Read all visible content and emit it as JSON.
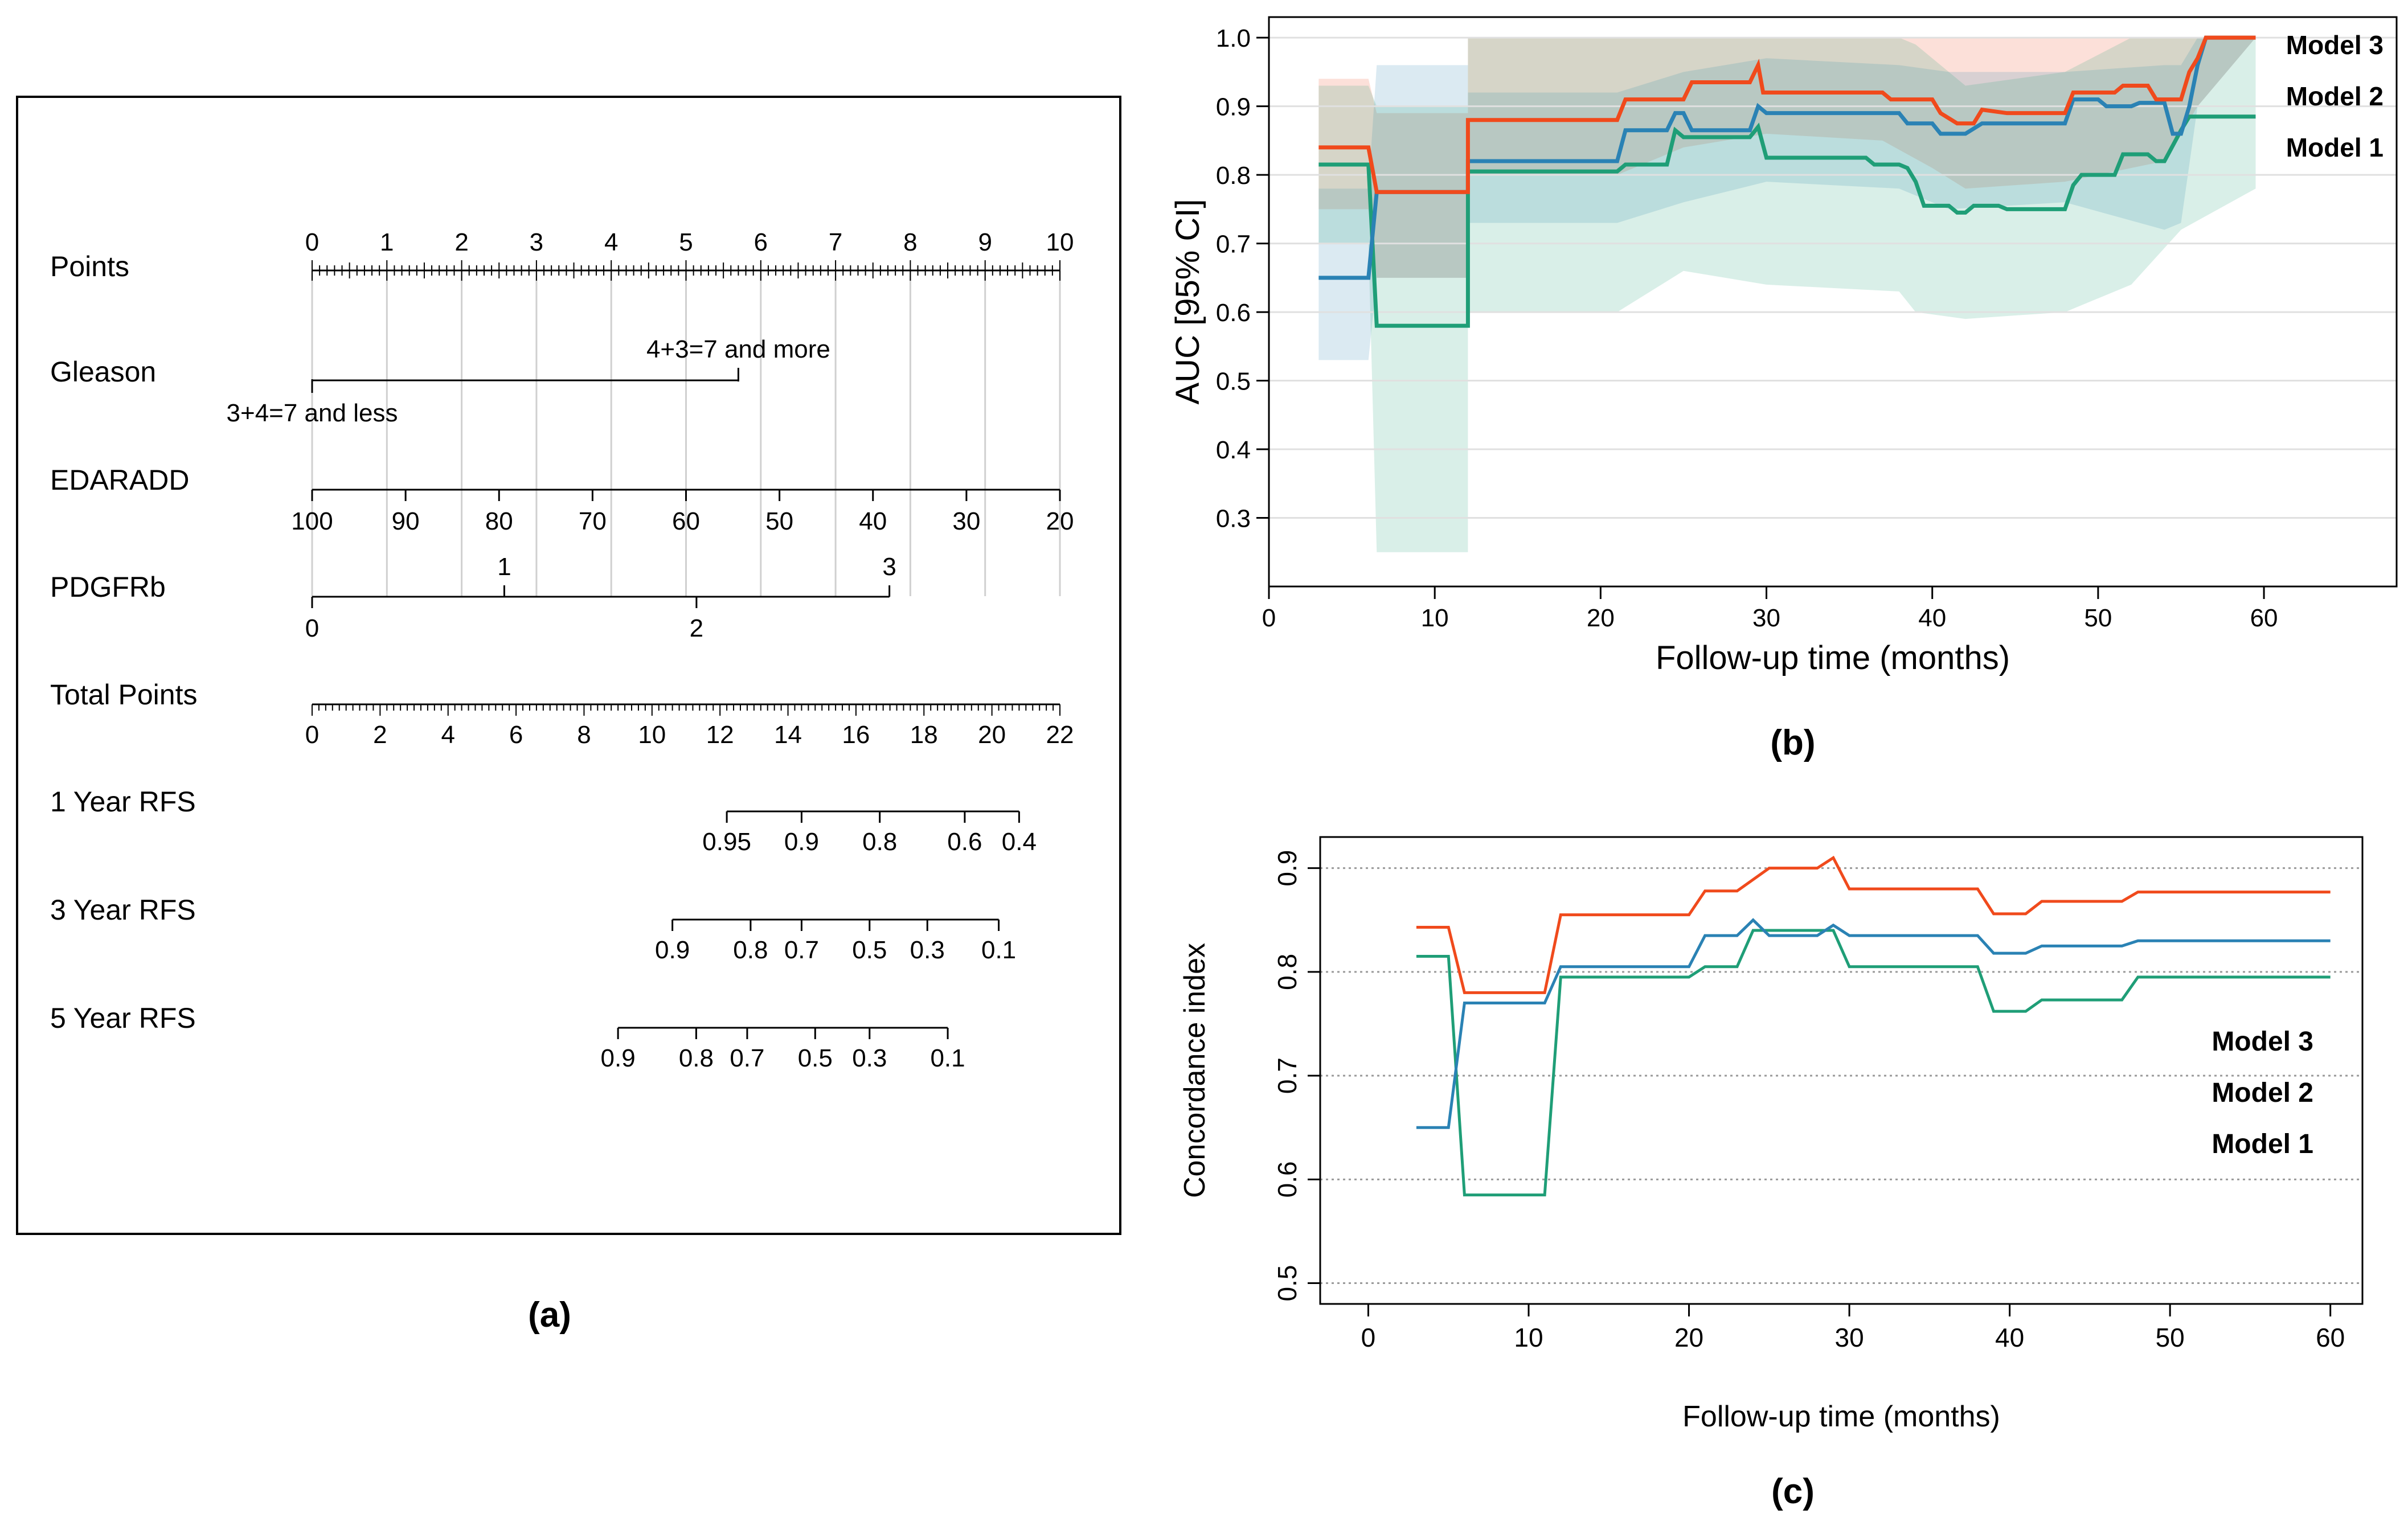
{
  "panel_labels": {
    "a": "(a)",
    "b": "(b)",
    "c": "(c)"
  },
  "colors": {
    "model3": "#f04a1c",
    "model2": "#2a82b4",
    "model1": "#1f9e77",
    "axis": "#000000",
    "grid": "#d9d9d9"
  },
  "chart_data": [
    {
      "type": "nomogram",
      "panel": "(a)",
      "rows": [
        {
          "name": "Points",
          "label": "Points",
          "scale": {
            "min": 0,
            "max": 10,
            "major": [
              0,
              1,
              2,
              3,
              4,
              5,
              6,
              7,
              8,
              9,
              10
            ],
            "minor_step": 0.1
          }
        },
        {
          "name": "Gleason",
          "label": "Gleason",
          "categories": [
            "3+4=7 and less",
            "4+3=7 and more"
          ],
          "points": [
            0,
            5.7
          ]
        },
        {
          "name": "EDARADD",
          "label": "EDARADD",
          "ticks": [
            100,
            90,
            80,
            70,
            60,
            50,
            40,
            30,
            20
          ],
          "points_at_100": 0,
          "points_at_20": 10
        },
        {
          "name": "PDGFRb",
          "label": "PDGFRb",
          "ticks_above": [
            "1",
            "3"
          ],
          "ticks_below": [
            "0",
            "2"
          ],
          "points": {
            "0": 0,
            "1": 2.57,
            "2": 5.14,
            "3": 7.72
          }
        },
        {
          "name": "Total Points",
          "label": "Total Points",
          "scale": {
            "min": 0,
            "max": 22,
            "major": [
              0,
              2,
              4,
              6,
              8,
              10,
              12,
              14,
              16,
              18,
              20,
              22
            ]
          }
        },
        {
          "name": "1 Year RFS",
          "label": "1 Year RFS",
          "ticks": [
            "0.95",
            "0.9",
            "0.8",
            "0.6",
            "0.4"
          ],
          "total_points": [
            12.2,
            14.4,
            16.7,
            19.2,
            20.8
          ]
        },
        {
          "name": "3 Year RFS",
          "label": "3 Year RFS",
          "ticks": [
            "0.9",
            "0.8",
            "0.7",
            "0.5",
            "0.3",
            "0.1"
          ],
          "total_points": [
            10.6,
            12.9,
            14.4,
            16.4,
            18.1,
            20.2
          ]
        },
        {
          "name": "5 Year RFS",
          "label": "5 Year RFS",
          "ticks": [
            "0.9",
            "0.8",
            "0.7",
            "0.5",
            "0.3",
            "0.1"
          ],
          "total_points": [
            9.0,
            11.3,
            12.8,
            14.8,
            16.4,
            18.7
          ]
        }
      ]
    },
    {
      "type": "line",
      "panel": "(b)",
      "xlabel": "Follow-up time (months)",
      "ylabel": "AUC [95% CI]",
      "xlim": [
        0,
        68
      ],
      "ylim": [
        0.2,
        1.03
      ],
      "xticks": [
        0,
        10,
        20,
        30,
        40,
        50,
        60
      ],
      "yticks": [
        "0.3",
        "0.4",
        "0.5",
        "0.6",
        "0.7",
        "0.8",
        "0.9",
        "1.0"
      ],
      "grid": "horizontal",
      "legend": "top-right",
      "series": [
        {
          "name": "Model 3",
          "color": "#f04a1c",
          "points": [
            [
              3,
              0.84
            ],
            [
              6,
              0.84
            ],
            [
              6.5,
              0.775
            ],
            [
              12,
              0.775
            ],
            [
              12,
              0.88
            ],
            [
              21,
              0.88
            ],
            [
              21.5,
              0.91
            ],
            [
              25,
              0.91
            ],
            [
              25.5,
              0.935
            ],
            [
              29,
              0.935
            ],
            [
              29.5,
              0.96
            ],
            [
              29.8,
              0.92
            ],
            [
              37,
              0.92
            ],
            [
              37.5,
              0.91
            ],
            [
              40,
              0.91
            ],
            [
              40.5,
              0.89
            ],
            [
              41.5,
              0.875
            ],
            [
              42.5,
              0.875
            ],
            [
              43,
              0.895
            ],
            [
              44.5,
              0.89
            ],
            [
              48,
              0.89
            ],
            [
              48.5,
              0.92
            ],
            [
              51,
              0.92
            ],
            [
              51.5,
              0.93
            ],
            [
              53,
              0.93
            ],
            [
              53.5,
              0.91
            ],
            [
              55,
              0.91
            ],
            [
              55.5,
              0.95
            ],
            [
              56,
              0.97
            ],
            [
              56.5,
              1.0
            ],
            [
              59.5,
              1.0
            ]
          ],
          "ci_band": [
            [
              3,
              0.75,
              0.94
            ],
            [
              6,
              0.75,
              0.94
            ],
            [
              6.5,
              0.65,
              0.89
            ],
            [
              12,
              0.65,
              0.89
            ],
            [
              12,
              0.8,
              1.0
            ],
            [
              21,
              0.8,
              1.0
            ],
            [
              25,
              0.84,
              1.0
            ],
            [
              30,
              0.86,
              1.0
            ],
            [
              37,
              0.85,
              1.0
            ],
            [
              40,
              0.81,
              1.0
            ],
            [
              42,
              0.78,
              1.0
            ],
            [
              48,
              0.79,
              1.0
            ],
            [
              54,
              0.82,
              1.0
            ],
            [
              56,
              0.9,
              1.0
            ],
            [
              59.5,
              1.0,
              1.0
            ]
          ]
        },
        {
          "name": "Model 2",
          "color": "#2a82b4",
          "points": [
            [
              3,
              0.65
            ],
            [
              6,
              0.65
            ],
            [
              6.5,
              0.775
            ],
            [
              12,
              0.775
            ],
            [
              12,
              0.82
            ],
            [
              21,
              0.82
            ],
            [
              21.5,
              0.865
            ],
            [
              24,
              0.865
            ],
            [
              24.5,
              0.89
            ],
            [
              25,
              0.89
            ],
            [
              25.5,
              0.865
            ],
            [
              29,
              0.865
            ],
            [
              29.5,
              0.9
            ],
            [
              30,
              0.89
            ],
            [
              38,
              0.89
            ],
            [
              38.5,
              0.875
            ],
            [
              40,
              0.875
            ],
            [
              40.5,
              0.86
            ],
            [
              42,
              0.86
            ],
            [
              43,
              0.875
            ],
            [
              48,
              0.875
            ],
            [
              48.5,
              0.91
            ],
            [
              50,
              0.91
            ],
            [
              50.5,
              0.9
            ],
            [
              52,
              0.9
            ],
            [
              52.5,
              0.905
            ],
            [
              54,
              0.905
            ],
            [
              54.5,
              0.86
            ],
            [
              55,
              0.86
            ],
            [
              55.5,
              0.9
            ],
            [
              56,
              0.96
            ],
            [
              56.5,
              1.0
            ],
            [
              59.5,
              1.0
            ]
          ],
          "ci_band": [
            [
              3,
              0.53,
              0.78
            ],
            [
              6,
              0.53,
              0.78
            ],
            [
              6.5,
              0.65,
              0.96
            ],
            [
              12,
              0.65,
              0.96
            ],
            [
              12,
              0.73,
              0.92
            ],
            [
              21,
              0.73,
              0.92
            ],
            [
              25,
              0.76,
              0.95
            ],
            [
              30,
              0.79,
              0.97
            ],
            [
              38,
              0.78,
              0.96
            ],
            [
              41,
              0.75,
              0.95
            ],
            [
              48,
              0.76,
              0.95
            ],
            [
              54,
              0.72,
              0.96
            ],
            [
              55,
              0.73,
              0.96
            ],
            [
              56,
              0.9,
              1.0
            ],
            [
              59.5,
              1.0,
              1.0
            ]
          ]
        },
        {
          "name": "Model 1",
          "color": "#1f9e77",
          "points": [
            [
              3,
              0.815
            ],
            [
              6,
              0.815
            ],
            [
              6.5,
              0.58
            ],
            [
              12,
              0.58
            ],
            [
              12,
              0.805
            ],
            [
              21,
              0.805
            ],
            [
              21.5,
              0.815
            ],
            [
              24,
              0.815
            ],
            [
              24.5,
              0.865
            ],
            [
              25,
              0.855
            ],
            [
              29,
              0.855
            ],
            [
              29.5,
              0.87
            ],
            [
              30,
              0.825
            ],
            [
              36,
              0.825
            ],
            [
              36.5,
              0.815
            ],
            [
              38,
              0.815
            ],
            [
              38.5,
              0.81
            ],
            [
              39,
              0.79
            ],
            [
              39.5,
              0.755
            ],
            [
              41,
              0.755
            ],
            [
              41.5,
              0.745
            ],
            [
              42,
              0.745
            ],
            [
              42.5,
              0.755
            ],
            [
              44,
              0.755
            ],
            [
              44.5,
              0.75
            ],
            [
              48,
              0.75
            ],
            [
              48.5,
              0.785
            ],
            [
              49,
              0.8
            ],
            [
              51,
              0.8
            ],
            [
              51.5,
              0.83
            ],
            [
              53,
              0.83
            ],
            [
              53.5,
              0.82
            ],
            [
              54,
              0.82
            ],
            [
              55,
              0.865
            ],
            [
              55.5,
              0.885
            ],
            [
              59.5,
              0.885
            ]
          ],
          "ci_band": [
            [
              3,
              0.7,
              0.93
            ],
            [
              6,
              0.7,
              0.93
            ],
            [
              6.5,
              0.25,
              0.9
            ],
            [
              12,
              0.25,
              0.9
            ],
            [
              12,
              0.6,
              1.0
            ],
            [
              21,
              0.6,
              1.0
            ],
            [
              25,
              0.66,
              1.0
            ],
            [
              30,
              0.64,
              1.0
            ],
            [
              38,
              0.63,
              1.0
            ],
            [
              39,
              0.6,
              0.99
            ],
            [
              42,
              0.59,
              0.93
            ],
            [
              48,
              0.6,
              0.95
            ],
            [
              52,
              0.64,
              1.0
            ],
            [
              55,
              0.72,
              1.0
            ],
            [
              59.5,
              0.78,
              1.0
            ]
          ]
        }
      ]
    },
    {
      "type": "line",
      "panel": "(c)",
      "xlabel": "Follow-up time (months)",
      "ylabel": "Concordance index",
      "xlim": [
        -3,
        62
      ],
      "ylim": [
        0.48,
        0.93
      ],
      "xticks": [
        0,
        10,
        20,
        30,
        40,
        50,
        60
      ],
      "yticks": [
        "0.5",
        "0.6",
        "0.7",
        "0.8",
        "0.9"
      ],
      "grid": "horizontal-dotted",
      "legend": "right",
      "series": [
        {
          "name": "Model 3",
          "color": "#f04a1c",
          "points": [
            [
              3,
              0.843
            ],
            [
              5,
              0.843
            ],
            [
              6,
              0.78
            ],
            [
              11,
              0.78
            ],
            [
              12,
              0.855
            ],
            [
              20,
              0.855
            ],
            [
              21,
              0.878
            ],
            [
              23,
              0.878
            ],
            [
              25,
              0.9
            ],
            [
              28,
              0.9
            ],
            [
              29,
              0.91
            ],
            [
              30,
              0.88
            ],
            [
              38,
              0.88
            ],
            [
              39,
              0.856
            ],
            [
              41,
              0.856
            ],
            [
              42,
              0.868
            ],
            [
              47,
              0.868
            ],
            [
              48,
              0.877
            ],
            [
              60,
              0.877
            ]
          ]
        },
        {
          "name": "Model 2",
          "color": "#2a82b4",
          "points": [
            [
              3,
              0.65
            ],
            [
              5,
              0.65
            ],
            [
              6,
              0.77
            ],
            [
              11,
              0.77
            ],
            [
              12,
              0.805
            ],
            [
              20,
              0.805
            ],
            [
              21,
              0.835
            ],
            [
              23,
              0.835
            ],
            [
              24,
              0.85
            ],
            [
              25,
              0.835
            ],
            [
              28,
              0.835
            ],
            [
              29,
              0.845
            ],
            [
              30,
              0.835
            ],
            [
              38,
              0.835
            ],
            [
              39,
              0.818
            ],
            [
              41,
              0.818
            ],
            [
              42,
              0.825
            ],
            [
              47,
              0.825
            ],
            [
              48,
              0.83
            ],
            [
              60,
              0.83
            ]
          ]
        },
        {
          "name": "Model 1",
          "color": "#1f9e77",
          "points": [
            [
              3,
              0.815
            ],
            [
              5,
              0.815
            ],
            [
              6,
              0.585
            ],
            [
              11,
              0.585
            ],
            [
              12,
              0.795
            ],
            [
              20,
              0.795
            ],
            [
              21,
              0.805
            ],
            [
              23,
              0.805
            ],
            [
              24,
              0.84
            ],
            [
              28,
              0.84
            ],
            [
              29,
              0.84
            ],
            [
              30,
              0.805
            ],
            [
              38,
              0.805
            ],
            [
              39,
              0.762
            ],
            [
              41,
              0.762
            ],
            [
              42,
              0.773
            ],
            [
              47,
              0.773
            ],
            [
              48,
              0.795
            ],
            [
              60,
              0.795
            ]
          ]
        }
      ]
    }
  ]
}
